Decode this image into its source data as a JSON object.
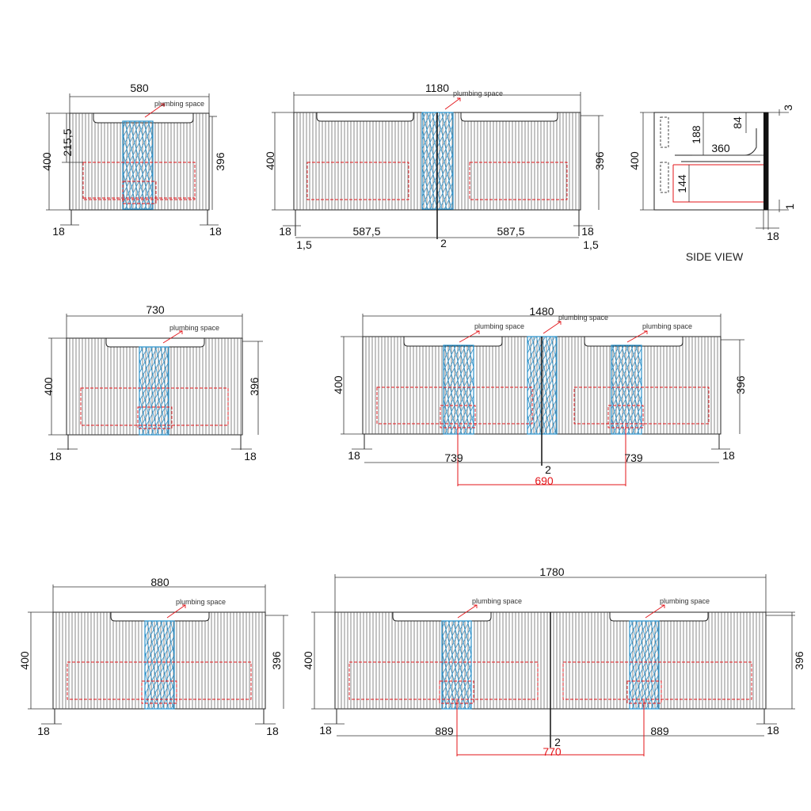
{
  "colors": {
    "plumbing": "#2a8fc8",
    "drawer": "#e3151a",
    "line": "#222222"
  },
  "caption": "SIDE VIEW",
  "note_label": "plumbing space",
  "views": {
    "v580": {
      "width": "580",
      "height_left": "400",
      "height_right": "396",
      "sub_height": "215,5",
      "leg_left": "18",
      "leg_right": "18"
    },
    "v1180": {
      "width": "1180",
      "height_left": "400",
      "height_right": "396",
      "leg_left": "18",
      "leg_right": "18",
      "gap_left": "1,5",
      "gap_right": "1,5",
      "half_left": "587,5",
      "half_right": "587,5",
      "center": "2"
    },
    "side": {
      "height": "400",
      "d188": "188",
      "d84": "84",
      "d360": "360",
      "d144": "144",
      "d3": "3",
      "d1": "1",
      "d18": "18"
    },
    "v730": {
      "width": "730",
      "height_left": "400",
      "height_right": "396",
      "leg_left": "18",
      "leg_right": "18"
    },
    "v1480": {
      "width": "1480",
      "height_left": "400",
      "height_right": "396",
      "leg_left": "18",
      "leg_right": "18",
      "half_left": "739",
      "half_right": "739",
      "center": "2",
      "span": "690"
    },
    "v880": {
      "width": "880",
      "height_left": "400",
      "height_right": "396",
      "leg_left": "18",
      "leg_right": "18"
    },
    "v1780": {
      "width": "1780",
      "height_left": "400",
      "height_right": "396",
      "leg_left": "18",
      "leg_right": "18",
      "half_left": "889",
      "half_right": "889",
      "center": "2",
      "span": "770"
    }
  }
}
